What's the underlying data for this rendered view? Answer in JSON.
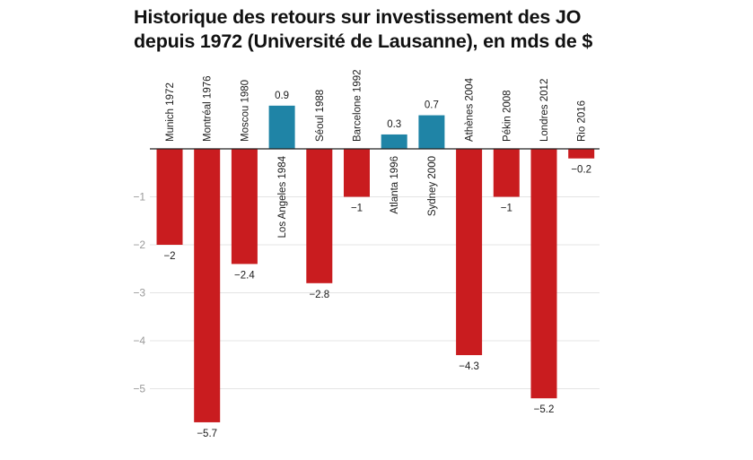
{
  "chart_data": {
    "type": "bar",
    "title_lines": [
      "Historique des retours sur investissement des JO",
      "depuis 1972 (Université de Lausanne), en mds de $"
    ],
    "categories": [
      "Munich 1972",
      "Montréal 1976",
      "Moscou 1980",
      "Los Angeles 1984",
      "Séoul 1988",
      "Barcelone 1992",
      "Atlanta 1996",
      "Sydney 2000",
      "Athènes 2004",
      "Pékin 2008",
      "Londres 2012",
      "Rio 2016"
    ],
    "values": [
      -2,
      -5.7,
      -2.4,
      0.9,
      -2.8,
      -1,
      0.3,
      0.7,
      -4.3,
      -1,
      -5.2,
      -0.2
    ],
    "value_labels": [
      "−2",
      "−5.7",
      "−2.4",
      "0.9",
      "−2.8",
      "−1",
      "0.3",
      "0.7",
      "−4.3",
      "−1",
      "−5.2",
      "−0.2"
    ],
    "y_ticks": [
      -1,
      -2,
      -3,
      -4,
      -5
    ],
    "y_tick_labels": [
      "−1",
      "−2",
      "−3",
      "−4",
      "−5"
    ],
    "ylim": [
      -5.8,
      1.05
    ],
    "xlabel": "",
    "ylabel": "",
    "grid": true,
    "colors": {
      "negative": "#c91c1f",
      "positive": "#1f84a6",
      "grid": "#e4e4e4",
      "axis": "#222222"
    }
  }
}
